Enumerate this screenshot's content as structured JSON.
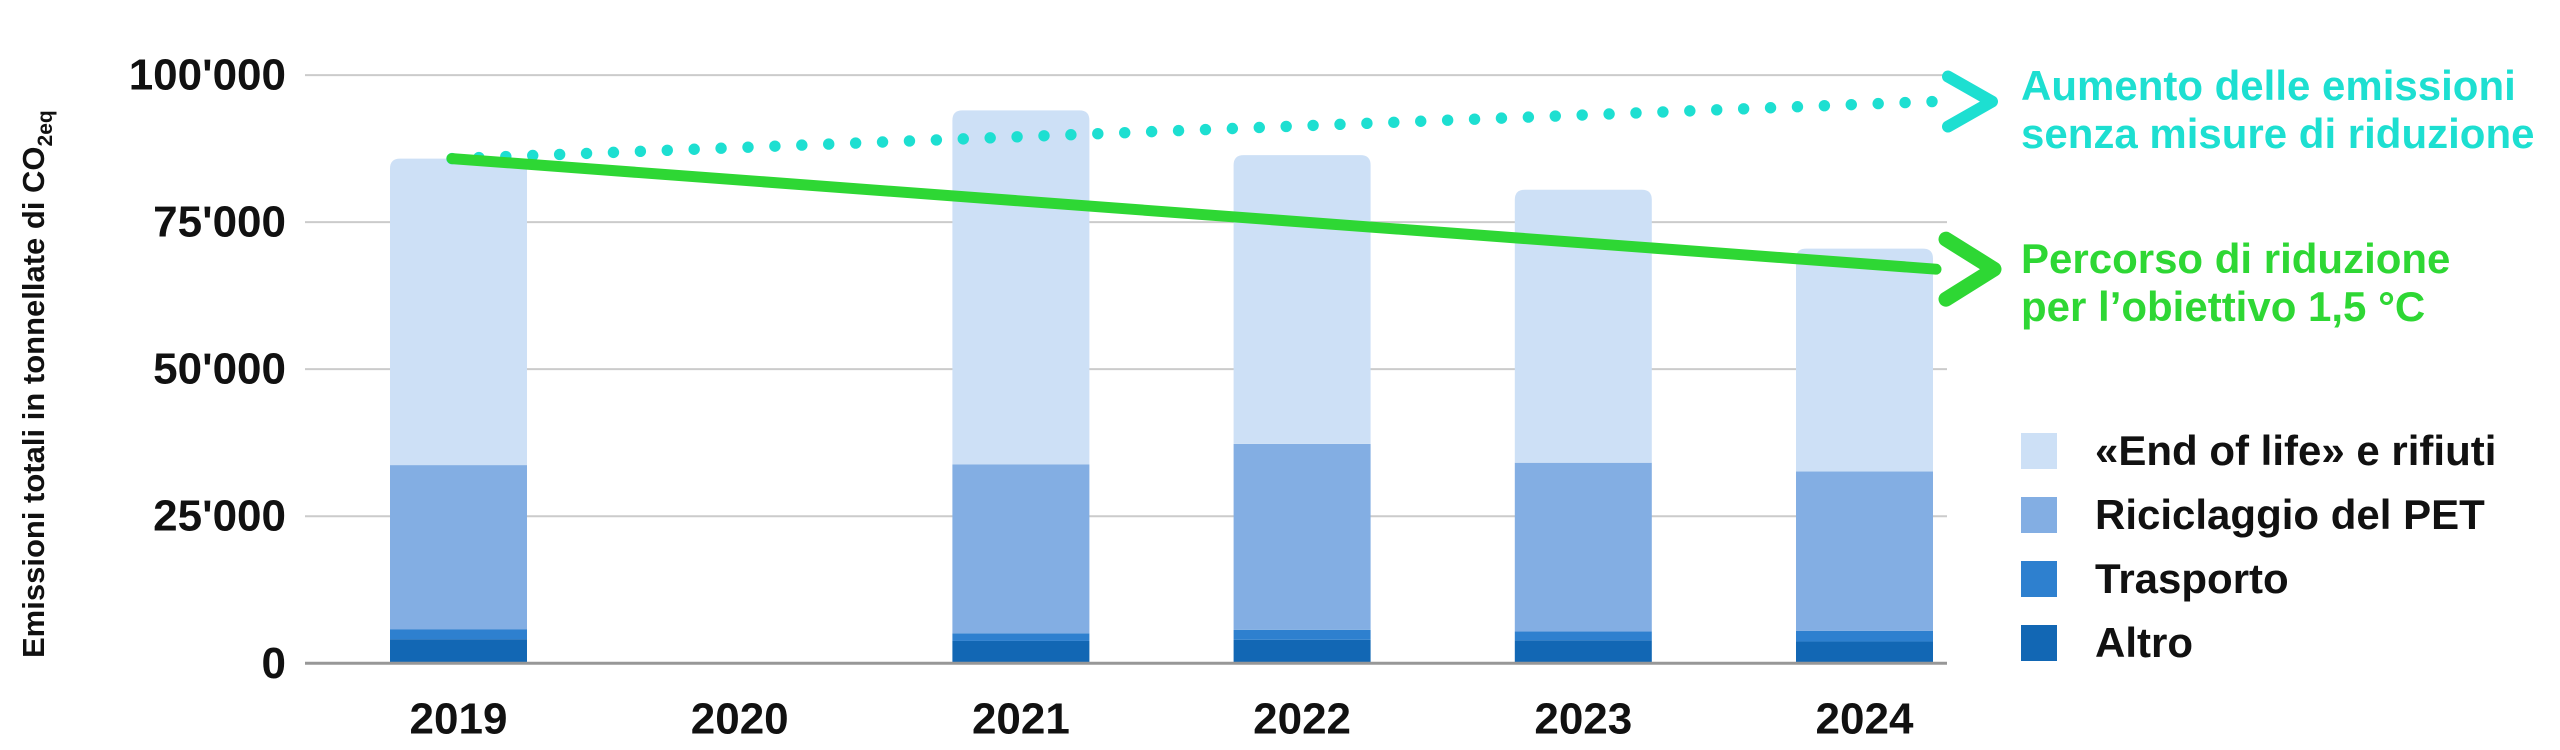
{
  "chart_data": {
    "type": "bar",
    "stacked": true,
    "ylabel": "Emissioni totali in tonnellate di CO2eq",
    "ylabel_main": "Emissioni totali in tonnellate di CO",
    "ylabel_sub": "2eq",
    "categories": [
      "2019",
      "2020",
      "2021",
      "2022",
      "2023",
      "2024"
    ],
    "y_ticks": [
      "100'000",
      "75'000",
      "50'000",
      "25'000",
      "0"
    ],
    "y_tick_values": [
      100000,
      75000,
      50000,
      25000,
      0
    ],
    "ylim": [
      0,
      110000
    ],
    "grid": true,
    "series": [
      {
        "name": "Altro",
        "color": "#1267b4",
        "values": [
          4100,
          null,
          3800,
          4000,
          3900,
          3700
        ]
      },
      {
        "name": "Trasporto",
        "color": "#2e80cf",
        "values": [
          1700,
          null,
          1300,
          1700,
          1500,
          1800
        ]
      },
      {
        "name": "Riciclaggio del PET",
        "color": "#83aee3",
        "values": [
          27900,
          null,
          28700,
          31600,
          28700,
          27100
        ]
      },
      {
        "name": "«End of life» e rifiuti",
        "color": "#cde0f6",
        "values": [
          52100,
          null,
          60200,
          49100,
          46400,
          37900
        ]
      }
    ],
    "totals": [
      85800,
      null,
      94000,
      86400,
      80500,
      70500
    ],
    "annotations": [
      {
        "id": "bau",
        "style": "dotted-arrow",
        "color": "#1ddfd1",
        "from_value": 85800,
        "to_value": 95500,
        "label": [
          "Aumento delle emissioni",
          "senza misure di riduzione"
        ]
      },
      {
        "id": "reduction-path",
        "style": "solid-arrow",
        "color": "#2ed734",
        "from_value": 85800,
        "to_value": 67000,
        "label": [
          "Percorso di riduzione",
          "per l’obiettivo 1,5 °C"
        ]
      }
    ],
    "legend": [
      {
        "label": "«End of life» e rifiuti",
        "color": "#cde0f6"
      },
      {
        "label": "Riciclaggio del PET",
        "color": "#83aee3"
      },
      {
        "label": "Trasporto",
        "color": "#2e80cf"
      },
      {
        "label": "Altro",
        "color": "#1267b4"
      }
    ],
    "colors": {
      "grid": "#cbcbcb",
      "axis": "#979797",
      "tick_text": "#111111"
    }
  }
}
